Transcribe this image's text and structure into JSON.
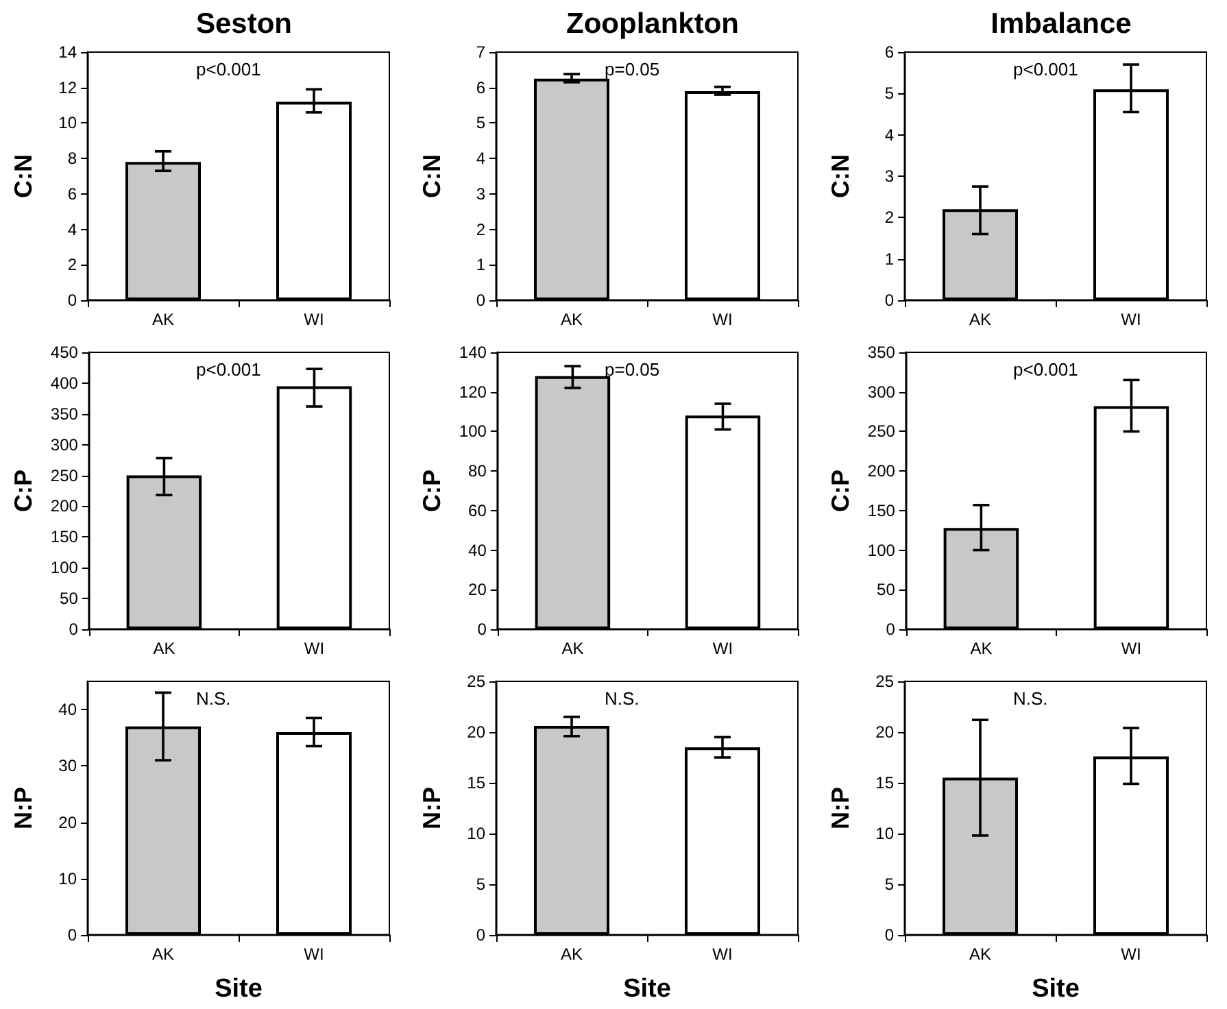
{
  "chart_data": [
    {
      "type": "bar",
      "title": "Seston",
      "ylabel": "C:N",
      "categories": [
        "AK",
        "WI"
      ],
      "values": [
        7.8,
        11.2
      ],
      "colors": [
        "#c8c8c8",
        "#ffffff"
      ],
      "errors": [
        [
          7.3,
          8.4
        ],
        [
          10.6,
          11.9
        ]
      ],
      "ylim": [
        0,
        14
      ],
      "yticks": [
        0,
        2,
        4,
        6,
        8,
        10,
        12,
        14
      ],
      "annotations": [
        "p<0.001"
      ]
    },
    {
      "type": "bar",
      "title": "Zooplankton",
      "ylabel": "C:N",
      "categories": [
        "AK",
        "WI"
      ],
      "values": [
        6.25,
        5.9
      ],
      "colors": [
        "#c8c8c8",
        "#ffffff"
      ],
      "errors": [
        [
          6.15,
          6.38
        ],
        [
          5.8,
          6.02
        ]
      ],
      "ylim": [
        0,
        7
      ],
      "yticks": [
        0,
        1,
        2,
        3,
        4,
        5,
        6,
        7
      ],
      "annotations": [
        "p=0.05"
      ]
    },
    {
      "type": "bar",
      "title": "Imbalance",
      "ylabel": "C:N",
      "categories": [
        "AK",
        "WI"
      ],
      "values": [
        2.2,
        5.1
      ],
      "colors": [
        "#c8c8c8",
        "#ffffff"
      ],
      "errors": [
        [
          1.6,
          2.75
        ],
        [
          4.55,
          5.7
        ]
      ],
      "ylim": [
        0,
        6
      ],
      "yticks": [
        0,
        1,
        2,
        3,
        4,
        5,
        6
      ],
      "annotations": [
        "p<0.001"
      ]
    },
    {
      "type": "bar",
      "ylabel": "C:P",
      "categories": [
        "AK",
        "WI"
      ],
      "values": [
        250,
        395
      ],
      "colors": [
        "#c8c8c8",
        "#ffffff"
      ],
      "errors": [
        [
          218,
          278
        ],
        [
          362,
          423
        ]
      ],
      "ylim": [
        0,
        450
      ],
      "yticks": [
        0,
        50,
        100,
        150,
        200,
        250,
        300,
        350,
        400,
        450
      ],
      "annotations": [
        "p<0.001"
      ]
    },
    {
      "type": "bar",
      "ylabel": "C:P",
      "categories": [
        "AK",
        "WI"
      ],
      "values": [
        128,
        108
      ],
      "colors": [
        "#c8c8c8",
        "#ffffff"
      ],
      "errors": [
        [
          122,
          133
        ],
        [
          101,
          114
        ]
      ],
      "ylim": [
        0,
        140
      ],
      "yticks": [
        0,
        20,
        40,
        60,
        80,
        100,
        120,
        140
      ],
      "annotations": [
        "p=0.05"
      ]
    },
    {
      "type": "bar",
      "ylabel": "C:P",
      "categories": [
        "AK",
        "WI"
      ],
      "values": [
        128,
        282
      ],
      "colors": [
        "#c8c8c8",
        "#ffffff"
      ],
      "errors": [
        [
          100,
          157
        ],
        [
          250,
          315
        ]
      ],
      "ylim": [
        0,
        350
      ],
      "yticks": [
        0,
        50,
        100,
        150,
        200,
        250,
        300,
        350
      ],
      "annotations": [
        "p<0.001"
      ]
    },
    {
      "type": "bar",
      "ylabel": "N:P",
      "xlabel": "Site",
      "categories": [
        "AK",
        "WI"
      ],
      "values": [
        37,
        36
      ],
      "colors": [
        "#c8c8c8",
        "#ffffff"
      ],
      "errors": [
        [
          31,
          43
        ],
        [
          33.5,
          38.5
        ]
      ],
      "ylim": [
        0,
        45
      ],
      "yticks": [
        0,
        10,
        20,
        30,
        40
      ],
      "annotations": [
        "N.S."
      ]
    },
    {
      "type": "bar",
      "ylabel": "N:P",
      "xlabel": "Site",
      "categories": [
        "AK",
        "WI"
      ],
      "values": [
        20.6,
        18.5
      ],
      "colors": [
        "#c8c8c8",
        "#ffffff"
      ],
      "errors": [
        [
          19.6,
          21.5
        ],
        [
          17.5,
          19.5
        ]
      ],
      "ylim": [
        0,
        25
      ],
      "yticks": [
        0,
        5,
        10,
        15,
        20,
        25
      ],
      "annotations": [
        "N.S."
      ]
    },
    {
      "type": "bar",
      "ylabel": "N:P",
      "xlabel": "Site",
      "categories": [
        "AK",
        "WI"
      ],
      "values": [
        15.5,
        17.6
      ],
      "colors": [
        "#c8c8c8",
        "#ffffff"
      ],
      "errors": [
        [
          9.8,
          21.2
        ],
        [
          14.9,
          20.4
        ]
      ],
      "ylim": [
        0,
        25
      ],
      "yticks": [
        0,
        5,
        10,
        15,
        20,
        25
      ],
      "annotations": [
        "N.S."
      ]
    }
  ]
}
